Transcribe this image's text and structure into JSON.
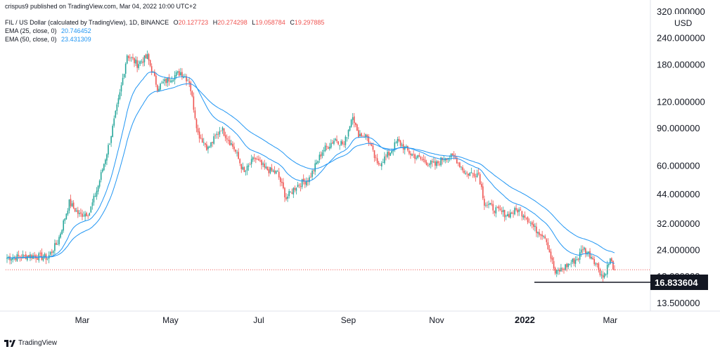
{
  "meta": {
    "published_by": "crispus9 published on TradingView.com, Mar 04, 2022 10:00 UTC+2",
    "footer_brand": "TradingView"
  },
  "legend": {
    "symbol": "FIL / US Dollar (calculated by TradingView), 1D, BINANCE",
    "ohlc": {
      "o_label": "O",
      "o": "20.127723",
      "h_label": "H",
      "h": "20.274298",
      "l_label": "L",
      "l": "19.058784",
      "c_label": "C",
      "c": "19.297885"
    },
    "ema25_label": "EMA (25, close, 0)",
    "ema25_value": "20.746452",
    "ema50_label": "EMA (50, close, 0)",
    "ema50_value": "23.431309"
  },
  "colors": {
    "up": "#26a69a",
    "down": "#ef5350",
    "ema25": "#2196f3",
    "ema50": "#2196f3",
    "axis_text": "#131722",
    "grid": "#f0f3fa",
    "price_line": "#ef5350"
  },
  "chart_data": {
    "type": "candlestick",
    "title": "FIL / US Dollar (calculated by TradingView), 1D, BINANCE",
    "currency_label": "USD",
    "y_scale": "log",
    "ylim": [
      12.5,
      340
    ],
    "y_ticks": [
      "320.000000",
      "240.000000",
      "180.000000",
      "120.000000",
      "90.000000",
      "60.000000",
      "44.000000",
      "32.000000",
      "24.000000",
      "18.000000",
      "13.500000"
    ],
    "x_ticks": [
      "Mar",
      "May",
      "Jul",
      "Sep",
      "Nov",
      "2022",
      "Mar"
    ],
    "support_label": "16.833604",
    "support_value": 16.833604,
    "last_close": 19.297885,
    "price_anchors": [
      [
        "2021-01-08",
        22.0
      ],
      [
        "2021-01-25",
        22.5
      ],
      [
        "2021-02-05",
        22.0
      ],
      [
        "2021-02-12",
        26.0
      ],
      [
        "2021-02-20",
        40.0
      ],
      [
        "2021-02-27",
        35.0
      ],
      [
        "2021-03-06",
        36.0
      ],
      [
        "2021-03-12",
        48.0
      ],
      [
        "2021-03-20",
        78.0
      ],
      [
        "2021-03-27",
        130.0
      ],
      [
        "2021-04-01",
        200.0
      ],
      [
        "2021-04-08",
        180.0
      ],
      [
        "2021-04-15",
        195.0
      ],
      [
        "2021-04-22",
        140.0
      ],
      [
        "2021-05-01",
        155.0
      ],
      [
        "2021-05-08",
        165.0
      ],
      [
        "2021-05-14",
        150.0
      ],
      [
        "2021-05-20",
        85.0
      ],
      [
        "2021-05-27",
        72.0
      ],
      [
        "2021-06-05",
        90.0
      ],
      [
        "2021-06-14",
        72.0
      ],
      [
        "2021-06-21",
        55.0
      ],
      [
        "2021-06-28",
        65.0
      ],
      [
        "2021-07-05",
        58.0
      ],
      [
        "2021-07-14",
        55.0
      ],
      [
        "2021-07-20",
        42.0
      ],
      [
        "2021-07-27",
        48.0
      ],
      [
        "2021-08-05",
        52.0
      ],
      [
        "2021-08-14",
        70.0
      ],
      [
        "2021-08-23",
        80.0
      ],
      [
        "2021-08-29",
        75.0
      ],
      [
        "2021-09-04",
        105.0
      ],
      [
        "2021-09-07",
        85.0
      ],
      [
        "2021-09-14",
        82.0
      ],
      [
        "2021-09-21",
        60.0
      ],
      [
        "2021-09-29",
        68.0
      ],
      [
        "2021-10-05",
        78.0
      ],
      [
        "2021-10-14",
        68.0
      ],
      [
        "2021-10-23",
        63.0
      ],
      [
        "2021-10-31",
        60.0
      ],
      [
        "2021-11-07",
        66.0
      ],
      [
        "2021-11-14",
        65.0
      ],
      [
        "2021-11-21",
        55.0
      ],
      [
        "2021-11-30",
        55.0
      ],
      [
        "2021-12-04",
        40.0
      ],
      [
        "2021-12-12",
        37.0
      ],
      [
        "2021-12-20",
        35.0
      ],
      [
        "2021-12-27",
        37.0
      ],
      [
        "2022-01-01",
        35.0
      ],
      [
        "2022-01-08",
        30.0
      ],
      [
        "2022-01-15",
        28.0
      ],
      [
        "2022-01-22",
        18.5
      ],
      [
        "2022-01-29",
        20.0
      ],
      [
        "2022-02-07",
        22.0
      ],
      [
        "2022-02-10",
        24.5
      ],
      [
        "2022-02-17",
        22.0
      ],
      [
        "2022-02-24",
        17.8
      ],
      [
        "2022-03-01",
        21.5
      ],
      [
        "2022-03-04",
        19.3
      ]
    ]
  }
}
